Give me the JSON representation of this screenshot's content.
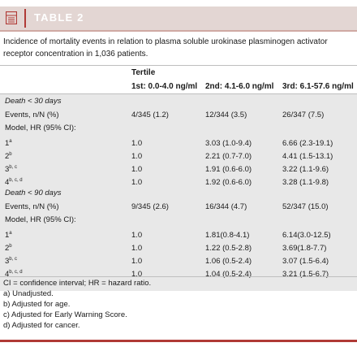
{
  "header": {
    "title": "TABLE 2",
    "icon": "table-icon"
  },
  "caption": "Incidence of mortality events in relation to plasma soluble urokinase plasminogen activator receptor concentration in 1,036 patients.",
  "table": {
    "group_header": "Tertile",
    "columns": [
      "1st: 0.0-4.0 ng/ml",
      "2nd: 4.1-6.0 ng/ml",
      "3rd: 6.1-57.6 ng/ml"
    ],
    "sections": [
      {
        "title": "Death < 30 days",
        "rows": [
          {
            "label": "Events, n/N (%)",
            "sup": "",
            "values": [
              "4/345 (1.2)",
              "12/344 (3.5)",
              "26/347 (7.5)"
            ]
          },
          {
            "label": "Model, HR (95% CI):",
            "sup": "",
            "values": [
              "",
              "",
              ""
            ]
          },
          {
            "label": "1",
            "sup": "a",
            "values": [
              "1.0",
              "3.03 (1.0-9.4)",
              "6.66 (2.3-19.1)"
            ]
          },
          {
            "label": "2",
            "sup": "b",
            "values": [
              "1.0",
              "2.21 (0.7-7.0)",
              "4.41 (1.5-13.1)"
            ]
          },
          {
            "label": "3",
            "sup": "b, c",
            "values": [
              "1.0",
              "1.91 (0.6-6.0)",
              "3.22 (1.1-9.6)"
            ]
          },
          {
            "label": "4",
            "sup": "b, c, d",
            "values": [
              "1.0",
              "1.92 (0.6-6.0)",
              "3.28 (1.1-9.8)"
            ]
          }
        ]
      },
      {
        "title": "Death < 90 days",
        "rows": [
          {
            "label": "Events, n/N (%)",
            "sup": "",
            "values": [
              "9/345 (2.6)",
              "16/344 (4.7)",
              "52/347 (15.0)"
            ]
          },
          {
            "label": "Model, HR (95% CI):",
            "sup": "",
            "values": [
              "",
              "",
              ""
            ]
          },
          {
            "label": "1",
            "sup": "a",
            "values": [
              "1.0",
              "1.81(0.8-4.1)",
              "6.14(3.0-12.5)"
            ]
          },
          {
            "label": "2",
            "sup": "b",
            "values": [
              "1.0",
              "1.22 (0.5-2.8)",
              "3.69(1.8-7.7)"
            ]
          },
          {
            "label": "3",
            "sup": "b, c",
            "values": [
              "1.0",
              "1.06 (0.5-2.4)",
              "3.07 (1.5-6.4)"
            ]
          },
          {
            "label": "4",
            "sup": "b, c, d",
            "values": [
              "1.0",
              "1.04 (0.5-2.4)",
              "3.21 (1.5-6.7)"
            ]
          }
        ]
      }
    ]
  },
  "footnotes": [
    "CI = confidence interval;  HR = hazard ratio.",
    "a) Unadjusted.",
    "b) Adjusted for age.",
    "c) Adjusted for Early Warning Score.",
    "d) Adjusted for cancer."
  ],
  "colors": {
    "accent": "#b03a36",
    "header_bg": "#e3d6d3",
    "band_bg": "#e8e8e8"
  }
}
